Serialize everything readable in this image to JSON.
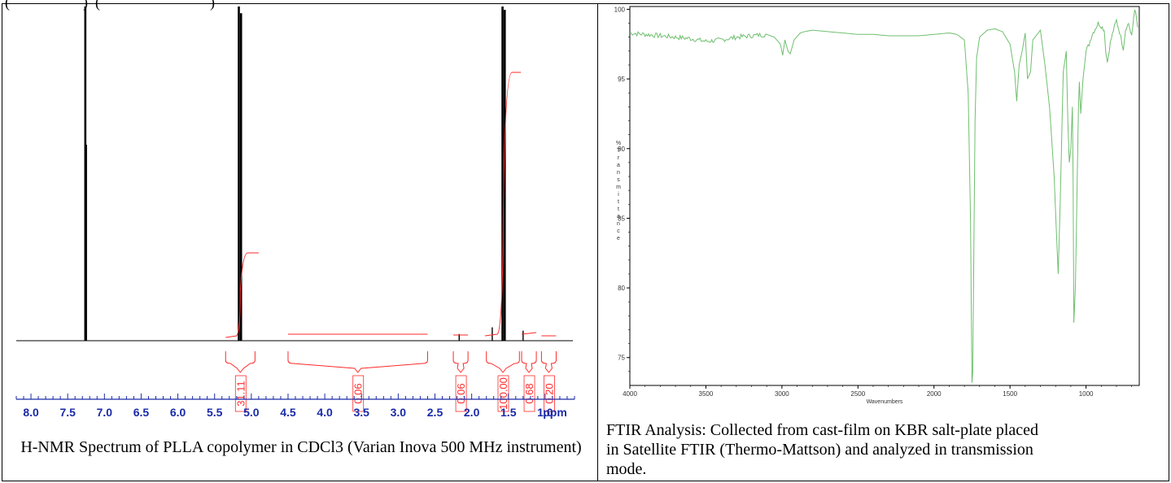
{
  "top_text": "(                    )  (                              )",
  "chart_data": [
    {
      "type": "line",
      "name_ref": "nmr",
      "xlabel": "ppm",
      "x_ticks": [
        "8.0",
        "7.5",
        "7.0",
        "6.5",
        "6.0",
        "5.5",
        "5.0",
        "4.5",
        "4.0",
        "3.5",
        "3.0",
        "2.5",
        "2.0",
        "1.5",
        "1.0"
      ],
      "xlim": [
        8.2,
        0.6
      ],
      "peaks": [
        {
          "x": 7.26,
          "height": 1.0
        },
        {
          "x": 5.17,
          "height": 1.0
        },
        {
          "x": 5.14,
          "height": 0.98
        },
        {
          "x": 1.58,
          "height": 1.0
        },
        {
          "x": 1.55,
          "height": 0.99
        },
        {
          "x": 2.17,
          "height": 0.02
        },
        {
          "x": 1.72,
          "height": 0.04
        },
        {
          "x": 1.3,
          "height": 0.03
        }
      ],
      "integrals": [
        {
          "label": "31.11",
          "from": 5.35,
          "to": 4.95
        },
        {
          "label": "0.06",
          "from": 4.5,
          "to": 2.6
        },
        {
          "label": "0.06",
          "from": 2.25,
          "to": 2.05
        },
        {
          "label": "100.00",
          "from": 1.8,
          "to": 1.35
        },
        {
          "label": "0.68",
          "from": 1.32,
          "to": 1.12
        },
        {
          "label": "0.20",
          "from": 1.05,
          "to": 0.85
        }
      ],
      "caption": "H-NMR Spectrum of PLLA copolymer in CDCl3 (Varian Inova 500 MHz instrument)",
      "colors": {
        "spectrum": "#000000",
        "integral": "#ff2a2a"
      }
    },
    {
      "type": "line",
      "name_ref": "ftir",
      "xlabel": "Wavenumbers",
      "ylabel": "% Transmittance",
      "ylabel_display": "%Transmittance",
      "x_ticks": [
        "4000",
        "3500",
        "3000",
        "2500",
        "2000",
        "1500",
        "1000"
      ],
      "y_ticks": [
        "100",
        "95",
        "90",
        "85",
        "80",
        "75"
      ],
      "xlim": [
        4000,
        650
      ],
      "ylim": [
        73,
        100.2
      ],
      "series": [
        {
          "x": [
            4000,
            3900,
            3800,
            3700,
            3600,
            3500,
            3400,
            3300,
            3200,
            3100,
            3050,
            3010,
            2995,
            2980,
            2960,
            2945,
            2920,
            2880,
            2850,
            2800,
            2700,
            2600,
            2500,
            2400,
            2300,
            2200,
            2100,
            2000,
            1900,
            1850,
            1800,
            1775,
            1760,
            1750,
            1745,
            1740,
            1730,
            1720,
            1700,
            1650,
            1600,
            1550,
            1500,
            1470,
            1456,
            1440,
            1420,
            1400,
            1385,
            1365,
            1350,
            1300,
            1270,
            1240,
            1210,
            1195,
            1183,
            1170,
            1150,
            1130,
            1120,
            1110,
            1100,
            1090,
            1085,
            1080,
            1070,
            1050,
            1044,
            1035,
            1020,
            1000,
            980,
            960,
            940,
            920,
            900,
            880,
            870,
            860,
            840,
            820,
            800,
            780,
            755,
            740,
            720,
            700,
            680,
            660
          ],
          "y": [
            98.3,
            98.2,
            98.1,
            98.0,
            97.9,
            97.7,
            97.8,
            98.0,
            98.1,
            98.2,
            98.0,
            97.5,
            96.7,
            97.8,
            97.0,
            96.8,
            97.8,
            98.3,
            98.4,
            98.5,
            98.4,
            98.3,
            98.2,
            98.2,
            98.1,
            98.1,
            98.1,
            98.2,
            98.3,
            98.2,
            97.8,
            94.0,
            85.0,
            73.2,
            74.0,
            80.0,
            92.0,
            96.5,
            98.0,
            98.5,
            98.6,
            98.4,
            97.5,
            95.5,
            93.4,
            96.0,
            97.0,
            98.3,
            95.0,
            95.5,
            97.8,
            98.5,
            96.0,
            93.0,
            88.0,
            84.0,
            81.0,
            86.0,
            95.5,
            97.0,
            92.0,
            89.0,
            90.0,
            93.0,
            88.0,
            77.5,
            80.0,
            93.0,
            94.8,
            92.5,
            95.0,
            97.0,
            97.5,
            98.2,
            98.6,
            99.0,
            98.8,
            98.5,
            97.0,
            96.2,
            97.6,
            98.5,
            99.2,
            98.4,
            97.2,
            98.6,
            99.0,
            98.0,
            100.1,
            98.7
          ]
        }
      ],
      "caption": "FTIR Analysis: Collected from cast-film on KBR salt-plate placed in Satellite FTIR (Thermo-Mattson) and analyzed in transmission mode.",
      "colors": {
        "spectrum": "#6fbf6f",
        "axis": "#000000"
      }
    }
  ]
}
